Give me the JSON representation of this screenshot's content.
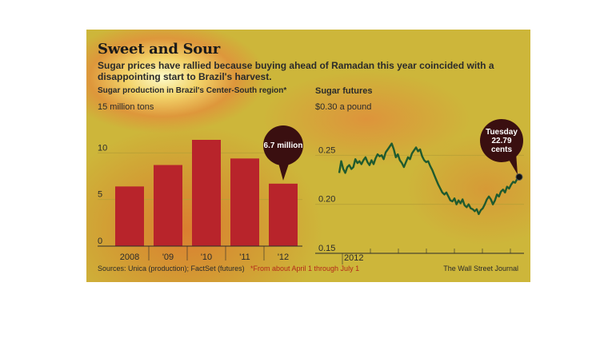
{
  "title": "Sweet and Sour",
  "subtitle": "Sugar prices have rallied because buying ahead of Ramadan this year coincided with a disappointing start to Brazil's harvest.",
  "sources": "Sources: Unica (production); FactSet (futures)",
  "footnote": "*From about April 1 through July 1",
  "credit": "The Wall Street Journal",
  "colors": {
    "bar": "#b8242b",
    "line": "#1f5a2e",
    "callout": "#3a0f10",
    "background": "#cdb63a"
  },
  "chart_data": [
    {
      "type": "bar",
      "title": "Sugar production in Brazil's Center-South region*",
      "y_unit": "15 million tons",
      "categories": [
        "2008",
        "'09",
        "'10",
        "'11",
        "'12"
      ],
      "values": [
        6.4,
        8.7,
        11.4,
        9.4,
        6.7
      ],
      "ylim": [
        0,
        15
      ],
      "y_ticks": [
        0,
        5,
        10
      ],
      "annotation": {
        "category": "'12",
        "text": "6.7 million"
      }
    },
    {
      "type": "line",
      "title": "Sugar futures",
      "y_unit": "$0.30 a pound",
      "x_label": "2012",
      "ylim": [
        0.15,
        0.3
      ],
      "y_ticks": [
        0.15,
        0.2,
        0.25
      ],
      "series": [
        {
          "values": [
            0.232,
            0.244,
            0.236,
            0.232,
            0.238,
            0.24,
            0.236,
            0.238,
            0.246,
            0.242,
            0.244,
            0.241,
            0.245,
            0.248,
            0.243,
            0.24,
            0.245,
            0.241,
            0.247,
            0.251,
            0.249,
            0.25,
            0.246,
            0.253,
            0.256,
            0.259,
            0.262,
            0.256,
            0.248,
            0.251,
            0.245,
            0.242,
            0.238,
            0.243,
            0.248,
            0.246,
            0.252,
            0.255,
            0.258,
            0.254,
            0.256,
            0.249,
            0.245,
            0.243,
            0.244,
            0.239,
            0.235,
            0.23,
            0.225,
            0.22,
            0.216,
            0.212,
            0.21,
            0.212,
            0.208,
            0.204,
            0.203,
            0.206,
            0.2,
            0.204,
            0.201,
            0.205,
            0.199,
            0.197,
            0.2,
            0.196,
            0.195,
            0.193,
            0.195,
            0.19,
            0.194,
            0.196,
            0.2,
            0.205,
            0.208,
            0.205,
            0.2,
            0.204,
            0.21,
            0.208,
            0.213,
            0.215,
            0.212,
            0.218,
            0.216,
            0.22,
            0.223,
            0.222,
            0.226,
            0.2279
          ]
        }
      ],
      "annotation": {
        "line1": "Tuesday",
        "line2": "22.79",
        "line3": "cents",
        "value": 0.2279
      }
    }
  ]
}
